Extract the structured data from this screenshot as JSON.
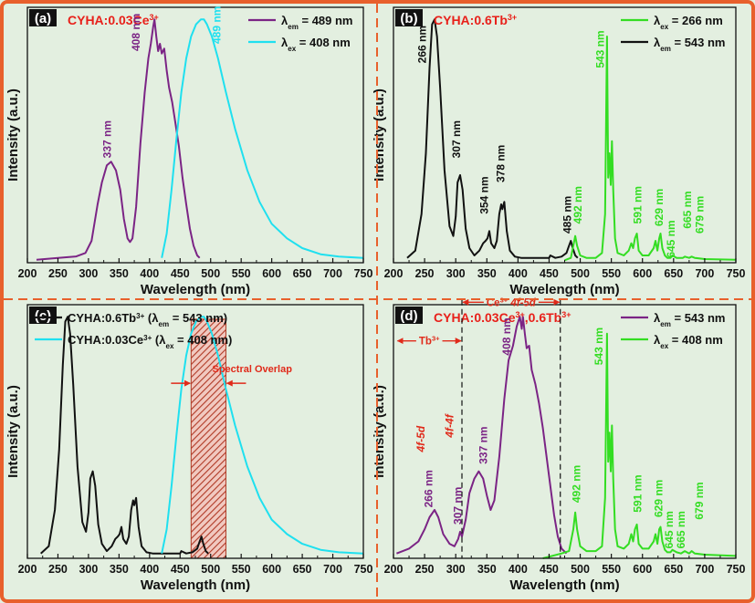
{
  "colors": {
    "background": "#e3efe0",
    "frame": "#e8602c",
    "purple": "#7b2485",
    "cyan": "#1fe0ef",
    "black": "#111111",
    "green": "#33dd22",
    "title_red": "#e8201a",
    "annotation_red": "#e02a1a",
    "hatch": "#b03a26"
  },
  "chart_data": [
    {
      "panel": "(a)",
      "type": "line",
      "title": "CYHA:0.03Ce",
      "title_sup": "3+",
      "xlabel": "Wavelength (nm)",
      "ylabel": "Intensity (a.u.)",
      "xlim": [
        200,
        750
      ],
      "ylim": [
        0,
        1.05
      ],
      "xticks": [
        "200",
        "250",
        "300",
        "350",
        "400",
        "450",
        "500",
        "550",
        "600",
        "650",
        "700",
        "750"
      ],
      "legend": [
        {
          "sym": "λ",
          "sub": "em",
          "rest": " = 489 nm",
          "color": "#7b2485"
        },
        {
          "sym": "λ",
          "sub": "ex",
          "rest": " = 408 nm",
          "color": "#1fe0ef"
        }
      ],
      "series": [
        {
          "name": "λem = 489 nm (excitation)",
          "color": "#7b2485",
          "x": [
            215,
            250,
            280,
            295,
            305,
            315,
            322,
            330,
            337,
            345,
            352,
            358,
            364,
            368,
            372,
            378,
            385,
            392,
            398,
            402,
            406,
            408,
            411,
            414,
            417,
            420,
            424,
            428,
            432,
            437,
            442,
            448,
            454,
            460,
            466,
            472,
            478,
            482
          ],
          "y": [
            0.012,
            0.02,
            0.026,
            0.04,
            0.09,
            0.24,
            0.33,
            0.4,
            0.415,
            0.38,
            0.3,
            0.18,
            0.1,
            0.085,
            0.1,
            0.23,
            0.49,
            0.7,
            0.84,
            0.9,
            0.97,
            1.0,
            0.93,
            0.87,
            0.9,
            0.86,
            0.88,
            0.79,
            0.72,
            0.66,
            0.58,
            0.48,
            0.35,
            0.24,
            0.14,
            0.07,
            0.03,
            0.02
          ]
        },
        {
          "name": "λex = 408 nm (emission)",
          "color": "#1fe0ef",
          "x": [
            420,
            428,
            436,
            444,
            452,
            460,
            468,
            476,
            484,
            489,
            494,
            502,
            512,
            525,
            540,
            560,
            580,
            600,
            625,
            650,
            680,
            710,
            750
          ],
          "y": [
            0.02,
            0.12,
            0.3,
            0.51,
            0.7,
            0.84,
            0.93,
            0.98,
            1.0,
            1.0,
            0.98,
            0.93,
            0.84,
            0.7,
            0.55,
            0.38,
            0.25,
            0.16,
            0.1,
            0.06,
            0.035,
            0.025,
            0.02
          ]
        }
      ],
      "annotations": [
        {
          "text": "337 nm",
          "x": 337,
          "y": 0.43,
          "color": "#7b2485"
        },
        {
          "text": "408 nm",
          "x": 384,
          "y": 0.87,
          "color": "#7b2485"
        },
        {
          "text": "489 nm",
          "x": 516,
          "y": 0.9,
          "color": "#1fe0ef"
        }
      ]
    },
    {
      "panel": "(b)",
      "type": "line",
      "title": "CYHA:0.6Tb",
      "title_sup": "3+",
      "xlabel": "Wavelength (nm)",
      "ylabel": "Intensity (a.u.)",
      "xlim": [
        200,
        750
      ],
      "ylim": [
        0,
        1.05
      ],
      "xticks": [
        "200",
        "250",
        "300",
        "350",
        "400",
        "450",
        "500",
        "550",
        "600",
        "650",
        "700",
        "750"
      ],
      "legend": [
        {
          "sym": "λ",
          "sub": "ex",
          "rest": " = 266 nm",
          "color": "#33dd22"
        },
        {
          "sym": "λ",
          "sub": "em",
          "rest": " = 543 nm",
          "color": "#111111"
        }
      ],
      "series": [
        {
          "name": "λem = 543 nm (excitation)",
          "color": "#111111",
          "x": [
            222,
            235,
            245,
            252,
            258,
            262,
            266,
            270,
            275,
            282,
            290,
            296,
            300,
            303,
            307,
            311,
            316,
            322,
            330,
            338,
            344,
            348,
            351,
            354,
            357,
            362,
            366,
            370,
            373,
            375,
            378,
            382,
            387,
            395,
            405,
            420,
            440,
            450,
            452,
            460,
            470,
            478,
            482,
            485,
            488,
            492,
            496
          ],
          "y": [
            0.02,
            0.05,
            0.2,
            0.45,
            0.8,
            0.98,
            1.0,
            0.93,
            0.72,
            0.38,
            0.15,
            0.11,
            0.19,
            0.33,
            0.36,
            0.3,
            0.14,
            0.06,
            0.03,
            0.05,
            0.08,
            0.09,
            0.1,
            0.13,
            0.08,
            0.06,
            0.09,
            0.2,
            0.24,
            0.22,
            0.25,
            0.13,
            0.05,
            0.025,
            0.02,
            0.02,
            0.02,
            0.02,
            0.03,
            0.02,
            0.025,
            0.04,
            0.07,
            0.09,
            0.06,
            0.03,
            0.02
          ]
        },
        {
          "name": "λex = 266 nm (emission)",
          "color": "#33dd22",
          "x": [
            475,
            485,
            489,
            492,
            495,
            500,
            510,
            525,
            535,
            540,
            543,
            545,
            547,
            549,
            551,
            553,
            556,
            560,
            570,
            578,
            582,
            585,
            588,
            591,
            594,
            600,
            610,
            618,
            621,
            624,
            627,
            629,
            632,
            636,
            640,
            645,
            648,
            655,
            662,
            665,
            668,
            675,
            679,
            684,
            700,
            750
          ],
          "y": [
            0.01,
            0.02,
            0.07,
            0.11,
            0.07,
            0.03,
            0.02,
            0.02,
            0.04,
            0.2,
            0.93,
            0.35,
            0.45,
            0.32,
            0.5,
            0.3,
            0.1,
            0.04,
            0.03,
            0.05,
            0.08,
            0.06,
            0.1,
            0.12,
            0.05,
            0.03,
            0.03,
            0.06,
            0.09,
            0.05,
            0.1,
            0.12,
            0.06,
            0.03,
            0.02,
            0.02,
            0.03,
            0.02,
            0.02,
            0.02,
            0.025,
            0.02,
            0.025,
            0.02,
            0.015,
            0.012
          ]
        }
      ],
      "annotations": [
        {
          "text": "266 nm",
          "x": 252,
          "y": 0.82,
          "color": "#111111"
        },
        {
          "text": "307 nm",
          "x": 307,
          "y": 0.43,
          "color": "#111111"
        },
        {
          "text": "354 nm",
          "x": 352,
          "y": 0.2,
          "color": "#111111"
        },
        {
          "text": "378 nm",
          "x": 378,
          "y": 0.33,
          "color": "#111111"
        },
        {
          "text": "485 nm",
          "x": 485,
          "y": 0.12,
          "color": "#111111"
        },
        {
          "text": "492 nm",
          "x": 502,
          "y": 0.16,
          "color": "#33dd22"
        },
        {
          "text": "543 nm",
          "x": 538,
          "y": 0.8,
          "color": "#33dd22"
        },
        {
          "text": "591 nm",
          "x": 598,
          "y": 0.16,
          "color": "#33dd22"
        },
        {
          "text": "629 nm",
          "x": 633,
          "y": 0.15,
          "color": "#33dd22"
        },
        {
          "text": "645 nm",
          "x": 652,
          "y": 0.02,
          "color": "#33dd22"
        },
        {
          "text": "665 nm",
          "x": 678,
          "y": 0.14,
          "color": "#33dd22"
        },
        {
          "text": "679 nm",
          "x": 698,
          "y": 0.12,
          "color": "#33dd22"
        }
      ]
    },
    {
      "panel": "(c)",
      "type": "line",
      "title": "",
      "xlabel": "Wavelength (nm)",
      "ylabel": "Intensity (a.u.)",
      "xlim": [
        200,
        750
      ],
      "ylim": [
        0,
        1.05
      ],
      "xticks": [
        "200",
        "250",
        "300",
        "350",
        "400",
        "450",
        "500",
        "550",
        "600",
        "650",
        "700",
        "750"
      ],
      "legend": [
        {
          "pre": "CYHA:0.6Tb",
          "sup": "3+",
          "mid": " (",
          "sym": "λ",
          "sub": "em",
          "rest": " = 543 nm)",
          "color": "#111111"
        },
        {
          "pre": "CYHA:0.03Ce",
          "sup": "3+",
          "mid": " (",
          "sym": "λ",
          "sub": "ex",
          "rest": " = 408 nm)",
          "color": "#1fe0ef"
        }
      ],
      "series": [
        {
          "name": "CYHA:0.6Tb3+ (λem = 543 nm)",
          "color": "#111111",
          "x": [
            222,
            235,
            245,
            252,
            258,
            262,
            266,
            270,
            275,
            282,
            290,
            296,
            300,
            303,
            307,
            311,
            316,
            322,
            330,
            338,
            344,
            348,
            351,
            354,
            357,
            362,
            366,
            370,
            373,
            375,
            378,
            382,
            387,
            395,
            405,
            420,
            440,
            450,
            452,
            460,
            470,
            478,
            482,
            485,
            488,
            492,
            496
          ],
          "y": [
            0.02,
            0.05,
            0.2,
            0.45,
            0.8,
            0.98,
            1.0,
            0.93,
            0.72,
            0.38,
            0.15,
            0.11,
            0.19,
            0.33,
            0.36,
            0.3,
            0.14,
            0.06,
            0.03,
            0.05,
            0.08,
            0.09,
            0.1,
            0.13,
            0.08,
            0.06,
            0.09,
            0.2,
            0.24,
            0.22,
            0.25,
            0.13,
            0.05,
            0.025,
            0.02,
            0.02,
            0.02,
            0.02,
            0.03,
            0.02,
            0.025,
            0.04,
            0.07,
            0.09,
            0.06,
            0.03,
            0.02
          ]
        },
        {
          "name": "CYHA:0.03Ce3+ (λex = 408 nm)",
          "color": "#1fe0ef",
          "x": [
            420,
            428,
            436,
            444,
            452,
            460,
            468,
            476,
            484,
            489,
            494,
            502,
            512,
            525,
            540,
            560,
            580,
            600,
            625,
            650,
            680,
            710,
            750
          ],
          "y": [
            0.02,
            0.12,
            0.3,
            0.51,
            0.7,
            0.84,
            0.93,
            0.98,
            1.0,
            1.0,
            0.98,
            0.93,
            0.84,
            0.7,
            0.55,
            0.38,
            0.25,
            0.16,
            0.1,
            0.06,
            0.035,
            0.025,
            0.02
          ]
        }
      ],
      "overlap_region": [
        468,
        525
      ],
      "annotations": [
        {
          "text": "Spectral Overlap",
          "x": 568,
          "y": 0.77,
          "color": "#e02a1a"
        }
      ]
    },
    {
      "panel": "(d)",
      "type": "line",
      "title": "CYHA:0.03Ce",
      "title_sup": "3+",
      "title_mid": ",0.6Tb",
      "title_sup2": "3+",
      "xlabel": "Wavelength (nm)",
      "ylabel": "Intensity (a.u.)",
      "xlim": [
        200,
        750
      ],
      "ylim": [
        0,
        1.05
      ],
      "xticks": [
        "200",
        "250",
        "300",
        "350",
        "400",
        "450",
        "500",
        "550",
        "600",
        "650",
        "700",
        "750"
      ],
      "legend": [
        {
          "sym": "λ",
          "sub": "em",
          "rest": " = 543 nm",
          "color": "#7b2485"
        },
        {
          "sym": "λ",
          "sub": "ex",
          "rest": " = 408 nm",
          "color": "#33dd22"
        }
      ],
      "series": [
        {
          "name": "λem = 543 nm (excitation)",
          "color": "#7b2485",
          "x": [
            205,
            225,
            240,
            250,
            258,
            266,
            272,
            280,
            290,
            298,
            304,
            307,
            310,
            316,
            322,
            330,
            337,
            344,
            350,
            356,
            362,
            370,
            378,
            385,
            392,
            398,
            403,
            406,
            408,
            411,
            414,
            418,
            422,
            428,
            434,
            440,
            446,
            452,
            458,
            464,
            470,
            478
          ],
          "y": [
            0.02,
            0.04,
            0.07,
            0.12,
            0.17,
            0.2,
            0.17,
            0.1,
            0.06,
            0.05,
            0.08,
            0.11,
            0.09,
            0.16,
            0.27,
            0.33,
            0.36,
            0.33,
            0.26,
            0.2,
            0.24,
            0.42,
            0.66,
            0.82,
            0.88,
            0.96,
            1.0,
            0.95,
            1.0,
            0.93,
            0.87,
            0.88,
            0.78,
            0.72,
            0.64,
            0.54,
            0.42,
            0.3,
            0.18,
            0.09,
            0.04,
            0.02
          ]
        },
        {
          "name": "λex = 408 nm (emission)",
          "color": "#33dd22",
          "x": [
            440,
            455,
            470,
            482,
            489,
            492,
            495,
            500,
            510,
            525,
            535,
            540,
            543,
            545,
            547,
            549,
            551,
            553,
            556,
            560,
            570,
            578,
            582,
            585,
            588,
            591,
            594,
            600,
            610,
            618,
            621,
            624,
            627,
            629,
            632,
            636,
            640,
            645,
            648,
            655,
            662,
            665,
            668,
            675,
            679,
            684,
            700,
            750
          ],
          "y": [
            0.0,
            0.01,
            0.02,
            0.03,
            0.12,
            0.19,
            0.12,
            0.05,
            0.03,
            0.03,
            0.05,
            0.25,
            0.93,
            0.4,
            0.52,
            0.36,
            0.55,
            0.33,
            0.12,
            0.05,
            0.04,
            0.06,
            0.1,
            0.07,
            0.12,
            0.14,
            0.06,
            0.04,
            0.04,
            0.07,
            0.1,
            0.06,
            0.12,
            0.13,
            0.07,
            0.035,
            0.025,
            0.025,
            0.035,
            0.025,
            0.02,
            0.025,
            0.03,
            0.02,
            0.03,
            0.02,
            0.015,
            0.01
          ]
        }
      ],
      "divider_lines": [
        310,
        468
      ],
      "range_labels": [
        {
          "pre": "Tb",
          "sup": "3+",
          "rest": "",
          "x_from": 205,
          "x_to": 310,
          "y": 0.87
        },
        {
          "pre": "Ce",
          "sup": "3+",
          "rest": " 4f-5d",
          "x_from": 310,
          "x_to": 468,
          "y": 1.03
        }
      ],
      "annotations": [
        {
          "text": "266 nm",
          "x": 262,
          "y": 0.21,
          "color": "#7b2485"
        },
        {
          "text": "4f-5d",
          "x": 250,
          "y": 0.44,
          "color": "#e02a1a"
        },
        {
          "text": "307 nm",
          "x": 309,
          "y": 0.14,
          "color": "#7b2485"
        },
        {
          "text": "4f-4f",
          "x": 296,
          "y": 0.5,
          "color": "#e02a1a"
        },
        {
          "text": "337 nm",
          "x": 350,
          "y": 0.39,
          "color": "#7b2485"
        },
        {
          "text": "408 nm",
          "x": 388,
          "y": 0.84,
          "color": "#7b2485"
        },
        {
          "text": "492 nm",
          "x": 500,
          "y": 0.23,
          "color": "#33dd22"
        },
        {
          "text": "543 nm",
          "x": 536,
          "y": 0.8,
          "color": "#33dd22"
        },
        {
          "text": "591 nm",
          "x": 598,
          "y": 0.19,
          "color": "#33dd22"
        },
        {
          "text": "629 nm",
          "x": 632,
          "y": 0.17,
          "color": "#33dd22"
        },
        {
          "text": "645 nm",
          "x": 649,
          "y": 0.04,
          "color": "#33dd22"
        },
        {
          "text": "665 nm",
          "x": 668,
          "y": 0.04,
          "color": "#33dd22"
        },
        {
          "text": "679 nm",
          "x": 697,
          "y": 0.16,
          "color": "#33dd22"
        }
      ]
    }
  ]
}
